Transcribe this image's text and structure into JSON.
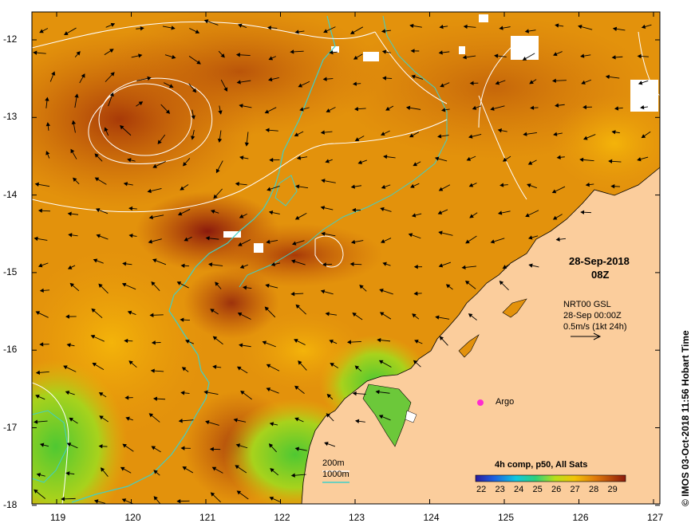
{
  "map": {
    "date": "28-Sep-2018",
    "time": "08Z",
    "current_source": "NRT00 GSL",
    "current_time": "28-Sep 00:00Z",
    "scale_label": "0.5m/s (1kt 24h)",
    "argo_label": "Argo",
    "depth_label_200": "200m",
    "depth_label_1000": "1000m",
    "colorbar_title": "4h comp, p50, All Sats",
    "colorbar_ticks": [
      "22",
      "23",
      "24",
      "25",
      "26",
      "27",
      "28",
      "29"
    ],
    "credit": "© IMOS 03-Oct-2018 11:56 Hobart Time",
    "lon_ticks": [
      "119",
      "120",
      "121",
      "122",
      "123",
      "124",
      "125",
      "126",
      "127"
    ],
    "lat_ticks": [
      "-12",
      "-13",
      "-14",
      "-15",
      "-16",
      "-17",
      "-18"
    ],
    "colors": {
      "land": "#fbcd9c",
      "depth_200": "#ffffff",
      "depth_1000": "#3fd0c8",
      "argo": "#ff2bd0"
    }
  }
}
